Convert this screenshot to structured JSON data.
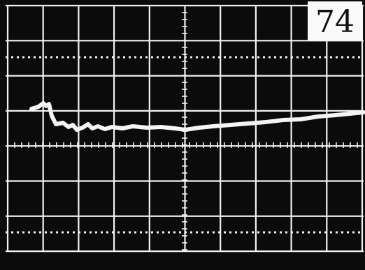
{
  "frame_label": "74"
}
